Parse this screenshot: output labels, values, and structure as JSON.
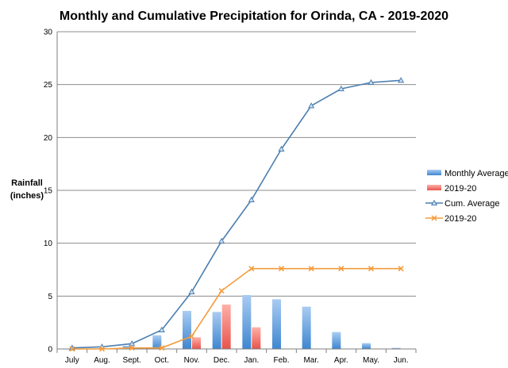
{
  "chart_data": {
    "type": "bar",
    "title": "Monthly and Cumulative Precipitation for Orinda, CA - 2019-2020",
    "ylabel_line1": "Rainfall",
    "ylabel_line2": "(inches)",
    "xlabel": "",
    "categories": [
      "July",
      "Aug.",
      "Sept.",
      "Oct.",
      "Nov.",
      "Dec.",
      "Jan.",
      "Feb.",
      "Mar.",
      "Apr.",
      "May.",
      "Jun."
    ],
    "ylim": [
      0,
      30
    ],
    "yticks": [
      0,
      5,
      10,
      15,
      20,
      25,
      30
    ],
    "grid": true,
    "legend_position": "right",
    "series": [
      {
        "name": "Monthly Average",
        "kind": "bar",
        "color": "#5b9bd5",
        "values": [
          0.02,
          0.05,
          0.3,
          1.3,
          3.6,
          3.5,
          5.1,
          4.7,
          4.0,
          1.6,
          0.55,
          0.1
        ]
      },
      {
        "name": "2019-20",
        "kind": "bar",
        "color": "#f0706a",
        "values": [
          0.0,
          0.0,
          0.1,
          0.0,
          1.1,
          4.2,
          2.05,
          0.0,
          0.0,
          0.0,
          0.0,
          0.0
        ]
      },
      {
        "name": "Cum. Average",
        "kind": "line",
        "marker": "triangle",
        "color": "#4a7eb0",
        "values": [
          0.1,
          0.2,
          0.5,
          1.8,
          5.4,
          10.2,
          14.1,
          18.9,
          23.0,
          24.6,
          25.2,
          25.4
        ]
      },
      {
        "name": "2019-20",
        "kind": "line",
        "marker": "x",
        "color": "#f39b3b",
        "values": [
          0.0,
          0.0,
          0.1,
          0.1,
          1.2,
          5.5,
          7.6,
          7.6,
          7.6,
          7.6,
          7.6,
          7.6
        ]
      }
    ]
  }
}
